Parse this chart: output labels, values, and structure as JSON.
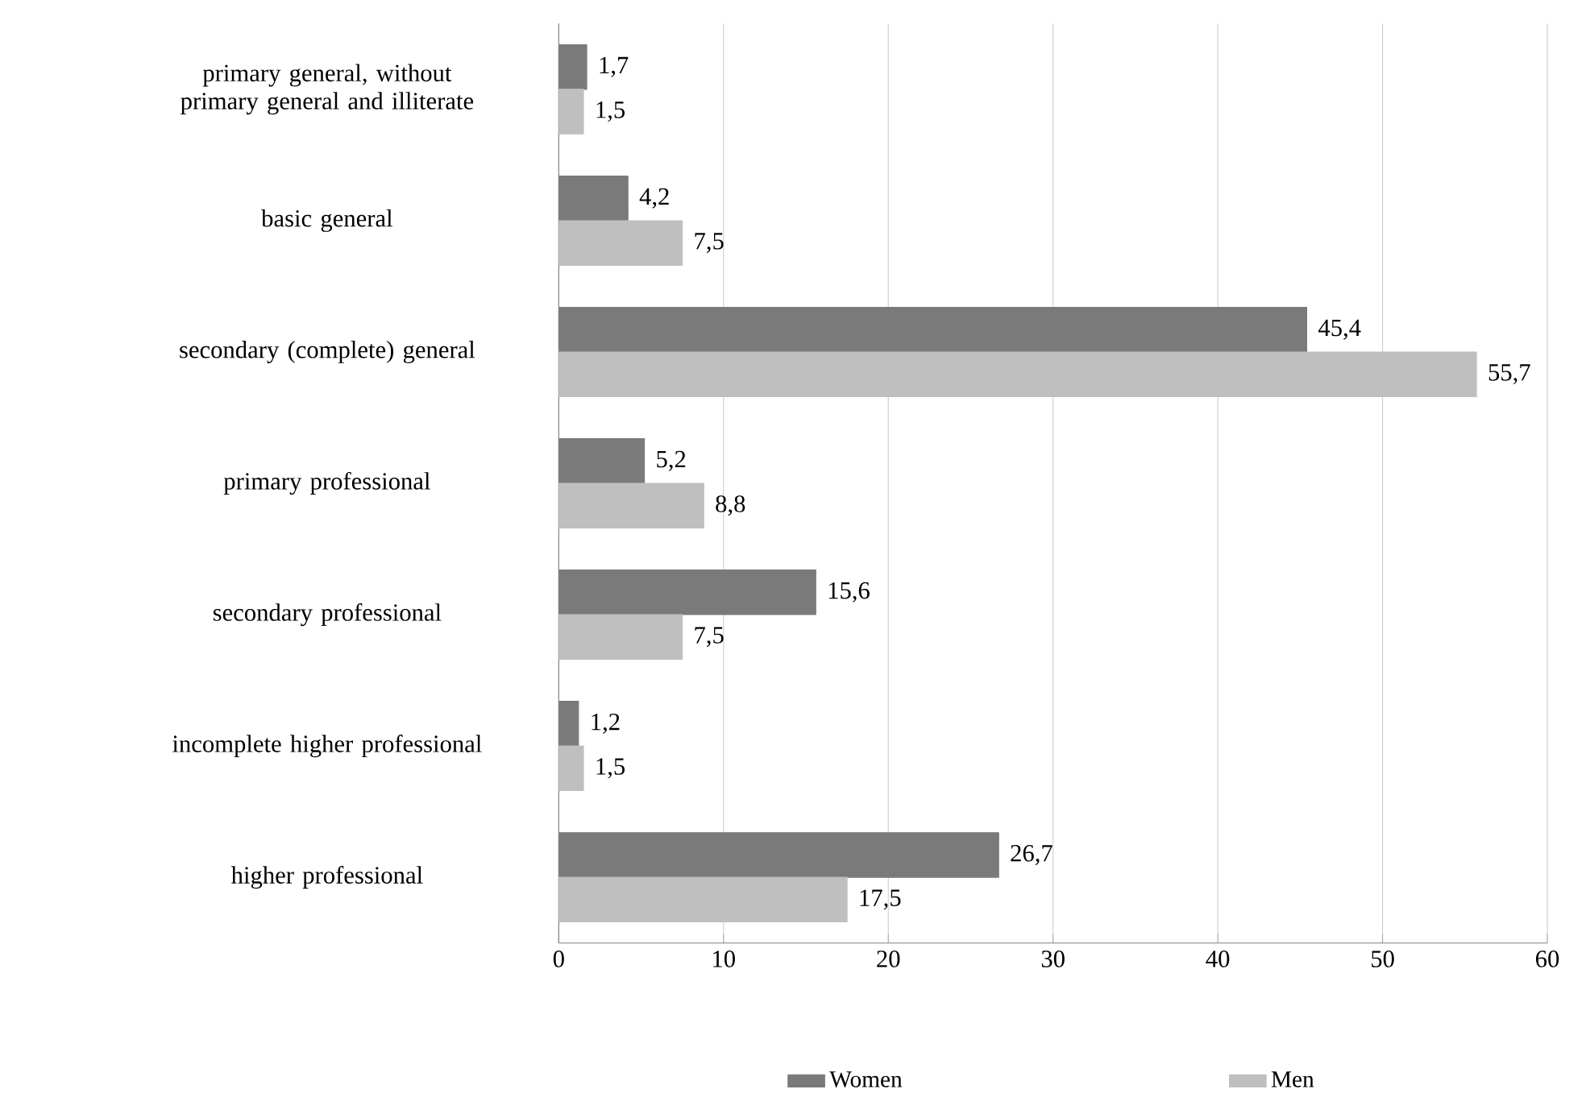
{
  "chart_data": {
    "type": "bar",
    "orientation": "horizontal",
    "categories": [
      "primary general, without primary general and  illiterate",
      "basic general",
      "secondary (complete) general",
      "primary professional",
      "secondary professional",
      "incomplete higher professional",
      "higher professional"
    ],
    "series": [
      {
        "name": "Women",
        "color": "#7a7a7a",
        "values": [
          1.7,
          4.2,
          45.4,
          5.2,
          15.6,
          1.2,
          26.7
        ],
        "value_labels": [
          "1,7",
          "4,2",
          "45,4",
          "5,2",
          "15,6",
          "1,2",
          "26,7"
        ]
      },
      {
        "name": "Men",
        "color": "#bfbfbf",
        "values": [
          1.5,
          7.5,
          55.7,
          8.8,
          7.5,
          1.5,
          17.5
        ],
        "value_labels": [
          "1,5",
          "7,5",
          "55,7",
          "8,8",
          "7,5",
          "1,5",
          "17,5"
        ]
      }
    ],
    "xlim": [
      0,
      60
    ],
    "xticks": [
      0,
      10,
      20,
      30,
      40,
      50,
      60
    ],
    "grid": "x",
    "legend": "bottom"
  }
}
